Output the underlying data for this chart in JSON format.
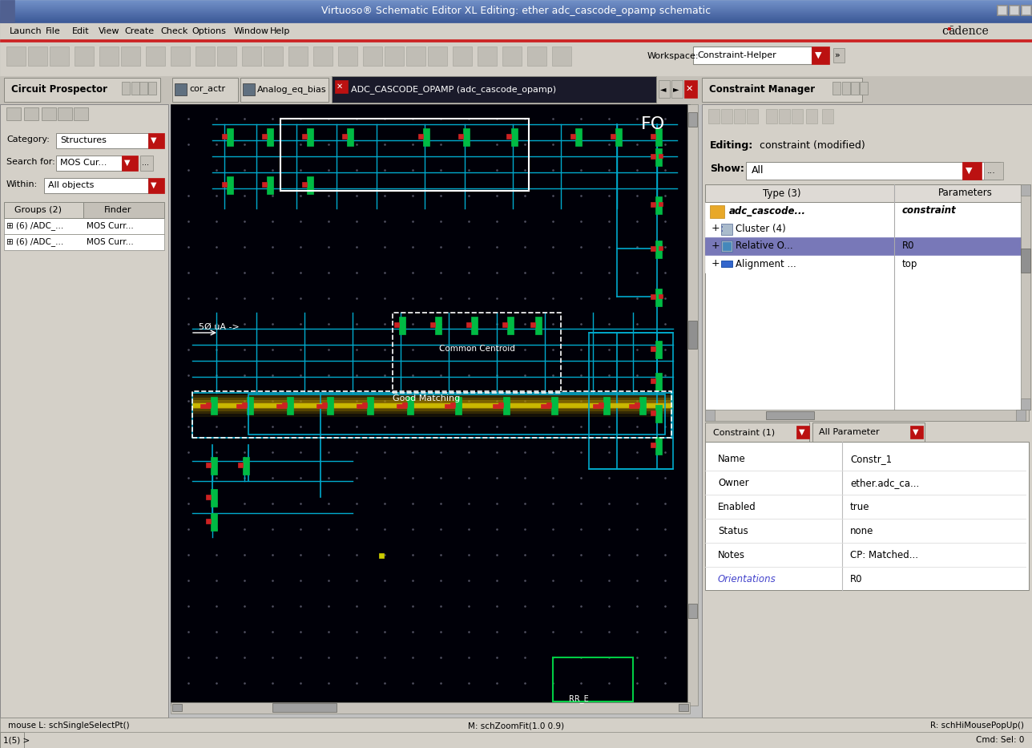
{
  "title_bar_text": "Virtuoso® Schematic Editor XL Editing: ether adc_cascode_opamp schematic",
  "window_bg": "#c0c0c0",
  "menu_items": [
    "Launch",
    "File",
    "Edit",
    "View",
    "Create",
    "Check",
    "Options",
    "Window",
    "Help"
  ],
  "cadence_text": "cādence",
  "left_panel_title": "Circuit Prospector",
  "schematic_tab": "ADC_CASCODE_OPAMP (adc_cascode_opamp)",
  "right_panel_title": "Constraint Manager",
  "editing_text_bold": "Editing:",
  "editing_text_rest": " constraint (modified)",
  "show_label": "Show:",
  "show_value": "All",
  "tree_header_type": "Type (3)",
  "tree_header_params": "Parameters",
  "tree_row1_name": "adc_cascode...",
  "tree_row1_param": "constraint",
  "tree_row2_name": "Cluster (4)",
  "tree_row3_name": "Relative O...",
  "tree_row3_param": "R0",
  "tree_row4_name": "Alignment ...",
  "tree_row4_param": "top",
  "constraint_tab": "Constraint (1)",
  "allparam_tab": "All Parameter",
  "prop_rows": [
    [
      "Name",
      "Constr_1",
      false
    ],
    [
      "Owner",
      "ether.adc_ca...",
      false
    ],
    [
      "Enabled",
      "true",
      false
    ],
    [
      "Status",
      "none",
      false
    ],
    [
      "Notes",
      "CP: Matched...",
      false
    ],
    [
      "Orientations",
      "R0",
      true
    ]
  ],
  "orient_label_color": "#4444cc",
  "status_bar_left": "mouse L: schSingleSelectPt()",
  "status_bar_mid": "M: schZoomFit(1.0 0.9)",
  "status_bar_right": "R: schHiMousePopUp()",
  "status_bar_left2": "1(5) >",
  "status_bar_right2": "Cmd: Sel: 0",
  "workspace_label": "Workspace:",
  "workspace_value": "Constraint-Helper",
  "red_color": "#bb1111",
  "highlight_row_bg": "#7878b8",
  "category_label": "Category:",
  "category_val": "Structures",
  "search_label": "Search for:",
  "search_val": "MOS Cur...",
  "within_label": "Within:",
  "within_val": "All objects",
  "groups_label": "Groups (2)",
  "finder_label": "Finder",
  "group1_left": "⊞ (6) /ADC_...",
  "group1_right": "MOS Curr...",
  "group2_left": "⊞ (6) /ADC_...",
  "group2_right": "MOS Curr...",
  "tab_analog": "Analog_eq_bias",
  "tab_actr": "cor_actr",
  "schematic_label_cc": "Common Centroid",
  "schematic_label_gm": "Good Matching",
  "schematic_label_50u": "5Ø uA ->",
  "schematic_label_fo": "FO",
  "cyan": "#00aacc",
  "green": "#00bb44",
  "red_dot": "#cc2222",
  "dot_color": "#555566",
  "title_grad_top": "#7090c8",
  "title_grad_bot": "#3a5898"
}
